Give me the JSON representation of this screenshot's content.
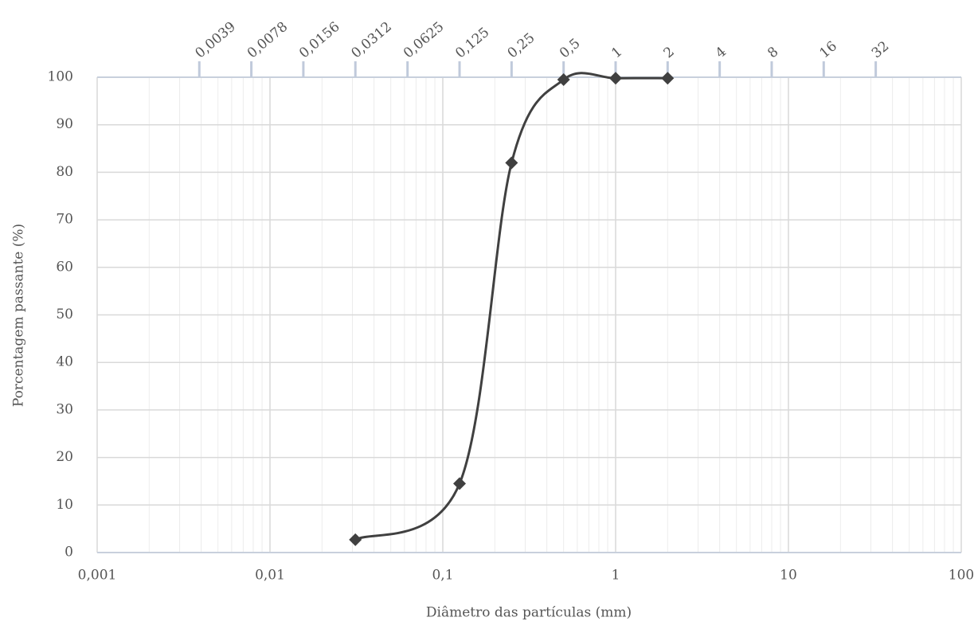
{
  "chart_data": {
    "type": "line",
    "x_label": "Diâmetro das partículas (mm)",
    "y_label": "Porcentagem passante (%)",
    "x": [
      0.0312,
      0.125,
      0.25,
      0.5,
      1,
      2
    ],
    "series": [
      {
        "color": "#404040",
        "marker": "diamond",
        "smooth": true,
        "values": [
          2.7,
          14.5,
          82,
          99.5,
          99.8,
          99.8
        ]
      }
    ],
    "xlim": [
      0.001,
      100
    ],
    "xscale": "log",
    "xticks": [
      {
        "value": 0.001,
        "label": "0,001"
      },
      {
        "value": 0.01,
        "label": "0,01"
      },
      {
        "value": 0.1,
        "label": "0,1"
      },
      1,
      10,
      100
    ],
    "x2ticks": [
      {
        "value": 0.0039,
        "label": "0,0039"
      },
      {
        "value": 0.0078,
        "label": "0,0078"
      },
      {
        "value": 0.0156,
        "label": "0,0156"
      },
      {
        "value": 0.0312,
        "label": "0,0312"
      },
      {
        "value": 0.0625,
        "label": "0,0625"
      },
      {
        "value": 0.125,
        "label": "0,125"
      },
      {
        "value": 0.25,
        "label": "0,25"
      },
      {
        "value": 0.5,
        "label": "0,5"
      },
      1,
      2,
      4,
      8,
      16,
      32
    ],
    "ylim": [
      0,
      100
    ],
    "yticks": [
      0,
      10,
      20,
      30,
      40,
      50,
      60,
      70,
      80,
      90,
      100
    ],
    "grid": true,
    "minor_grid": true
  }
}
